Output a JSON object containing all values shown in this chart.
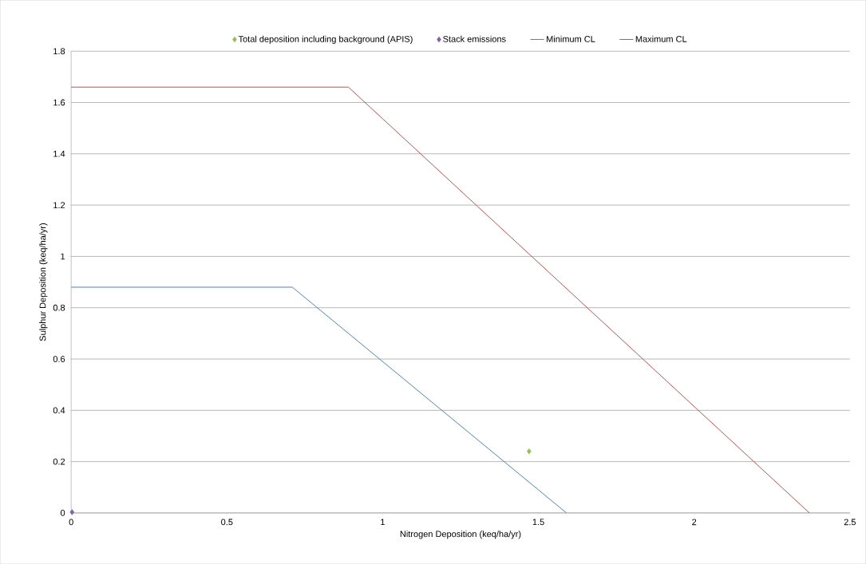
{
  "chart_data": {
    "type": "line",
    "xlabel": "Nitrogen Deposition (keq/ha/yr)",
    "ylabel": "Sulphur Deposition (keq/ha/yr)",
    "xlim": [
      0,
      2.5
    ],
    "ylim": [
      0,
      1.8
    ],
    "xticks": [
      0,
      0.5,
      1,
      1.5,
      2,
      2.5
    ],
    "yticks": [
      0,
      0.2,
      0.4,
      0.6,
      0.8,
      1,
      1.2,
      1.4,
      1.6,
      1.8
    ],
    "grid": "y",
    "legend": "top",
    "series": [
      {
        "name": "Total deposition including background (APIS)",
        "type": "scatter",
        "marker": "diamond",
        "color": "#9bbb59",
        "x": [
          1.47
        ],
        "values": [
          0.24
        ]
      },
      {
        "name": "Stack emissions",
        "type": "scatter",
        "marker": "diamond",
        "color": "#8064a2",
        "x": [
          0.003
        ],
        "values": [
          0.003
        ]
      },
      {
        "name": "Minimum CL",
        "color": "#4f81bd",
        "x": [
          0,
          0.71,
          1.59
        ],
        "values": [
          0.88,
          0.88,
          0
        ]
      },
      {
        "name": "Maximum CL",
        "color": "#c0504d",
        "x": [
          0,
          0.89,
          2.37
        ],
        "values": [
          1.66,
          1.66,
          0
        ]
      }
    ]
  }
}
